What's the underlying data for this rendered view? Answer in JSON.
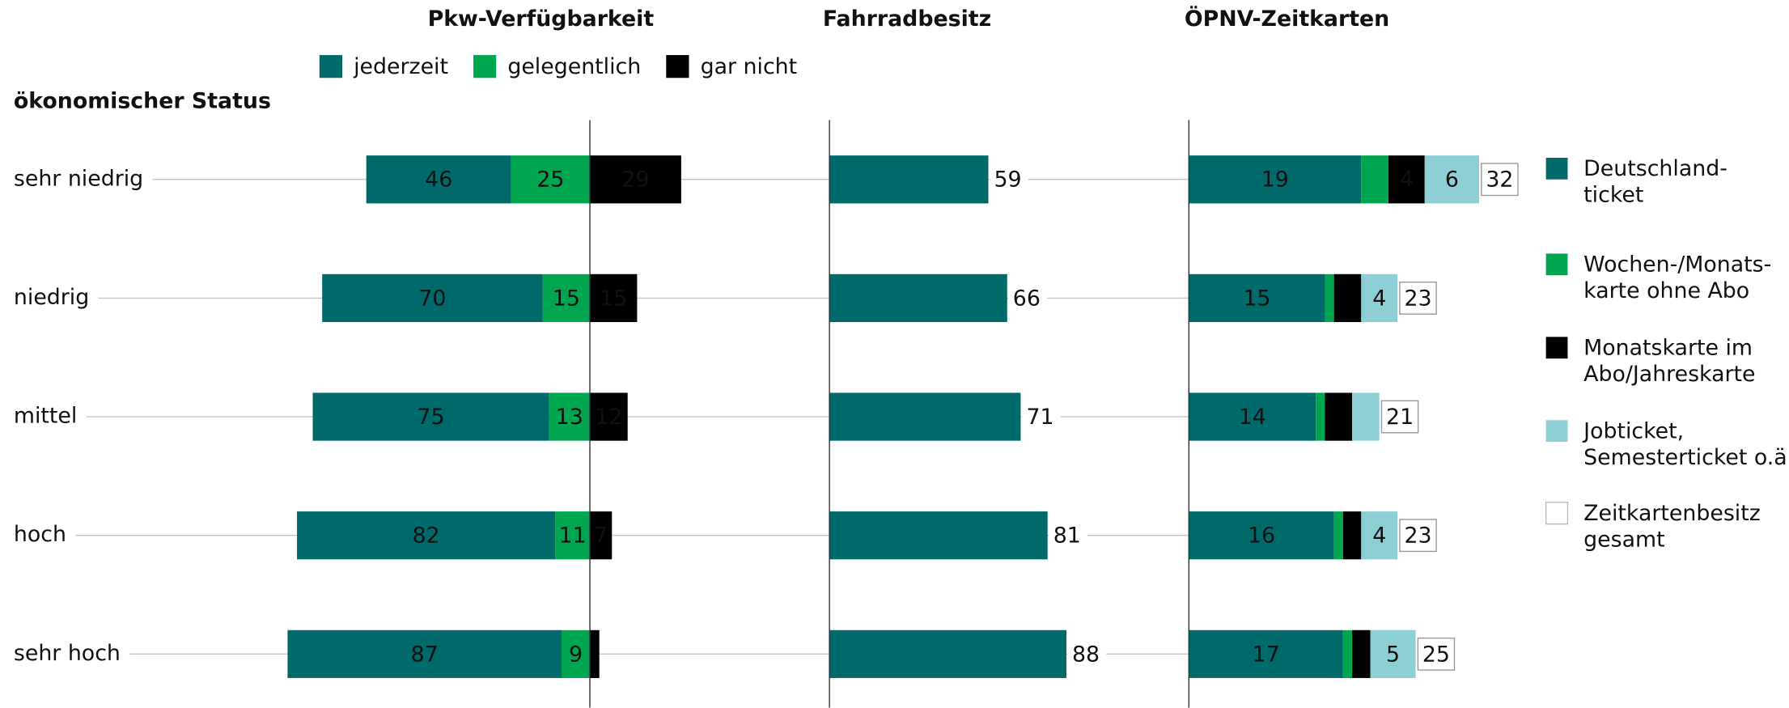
{
  "chart_data": [
    {
      "type": "diverging_bar",
      "title": "Pkw-Verfügbarkeit",
      "ylabel": "ökonomischer Status",
      "categories": [
        "sehr niedrig",
        "niedrig",
        "mittel",
        "hoch",
        "sehr hoch"
      ],
      "series": [
        {
          "name": "jederzeit",
          "color": "#006a6a",
          "values": [
            46,
            70,
            75,
            82,
            87
          ]
        },
        {
          "name": "gelegentlich",
          "color": "#00a54f",
          "values": [
            25,
            15,
            13,
            11,
            9
          ]
        },
        {
          "name": "gar nicht",
          "color": "#000000",
          "values": [
            29,
            15,
            12,
            7,
            3
          ],
          "value_labels": [
            "29",
            "15",
            "12",
            "7",
            null
          ]
        }
      ]
    },
    {
      "type": "bar",
      "title": "Fahrradbesitz",
      "color": "#006a6a",
      "values": [
        59,
        66,
        71,
        81,
        88
      ]
    },
    {
      "type": "stacked_bar",
      "title": "ÖPNV-Zeitkarten",
      "series": [
        {
          "name": "Deutschland-\nticket",
          "color": "#006a6a",
          "values": [
            19,
            15,
            14,
            16,
            17
          ]
        },
        {
          "name": "Wochen-/Monats-\nkarte ohne Abo",
          "color": "#00a54f",
          "values": [
            3,
            1,
            1,
            1,
            1
          ],
          "value_labels": [
            null,
            null,
            null,
            null,
            null
          ]
        },
        {
          "name": "Monatskarte im\nAbo/Jahreskarte",
          "color": "#000000",
          "values": [
            4,
            3,
            3,
            2,
            2
          ],
          "value_labels": [
            "4",
            null,
            null,
            null,
            null
          ]
        },
        {
          "name": "Jobticket,\nSemesterticket o.ä.",
          "color": "#8ecfd6",
          "values": [
            6,
            4,
            3,
            4,
            5
          ],
          "value_labels": [
            "6",
            "4",
            null,
            "4",
            "5"
          ]
        },
        {
          "name": "Zeitkartenbesitz\ngesamt",
          "color": "#ffffff",
          "values": [
            32,
            23,
            21,
            23,
            25
          ],
          "total": true
        }
      ]
    }
  ]
}
